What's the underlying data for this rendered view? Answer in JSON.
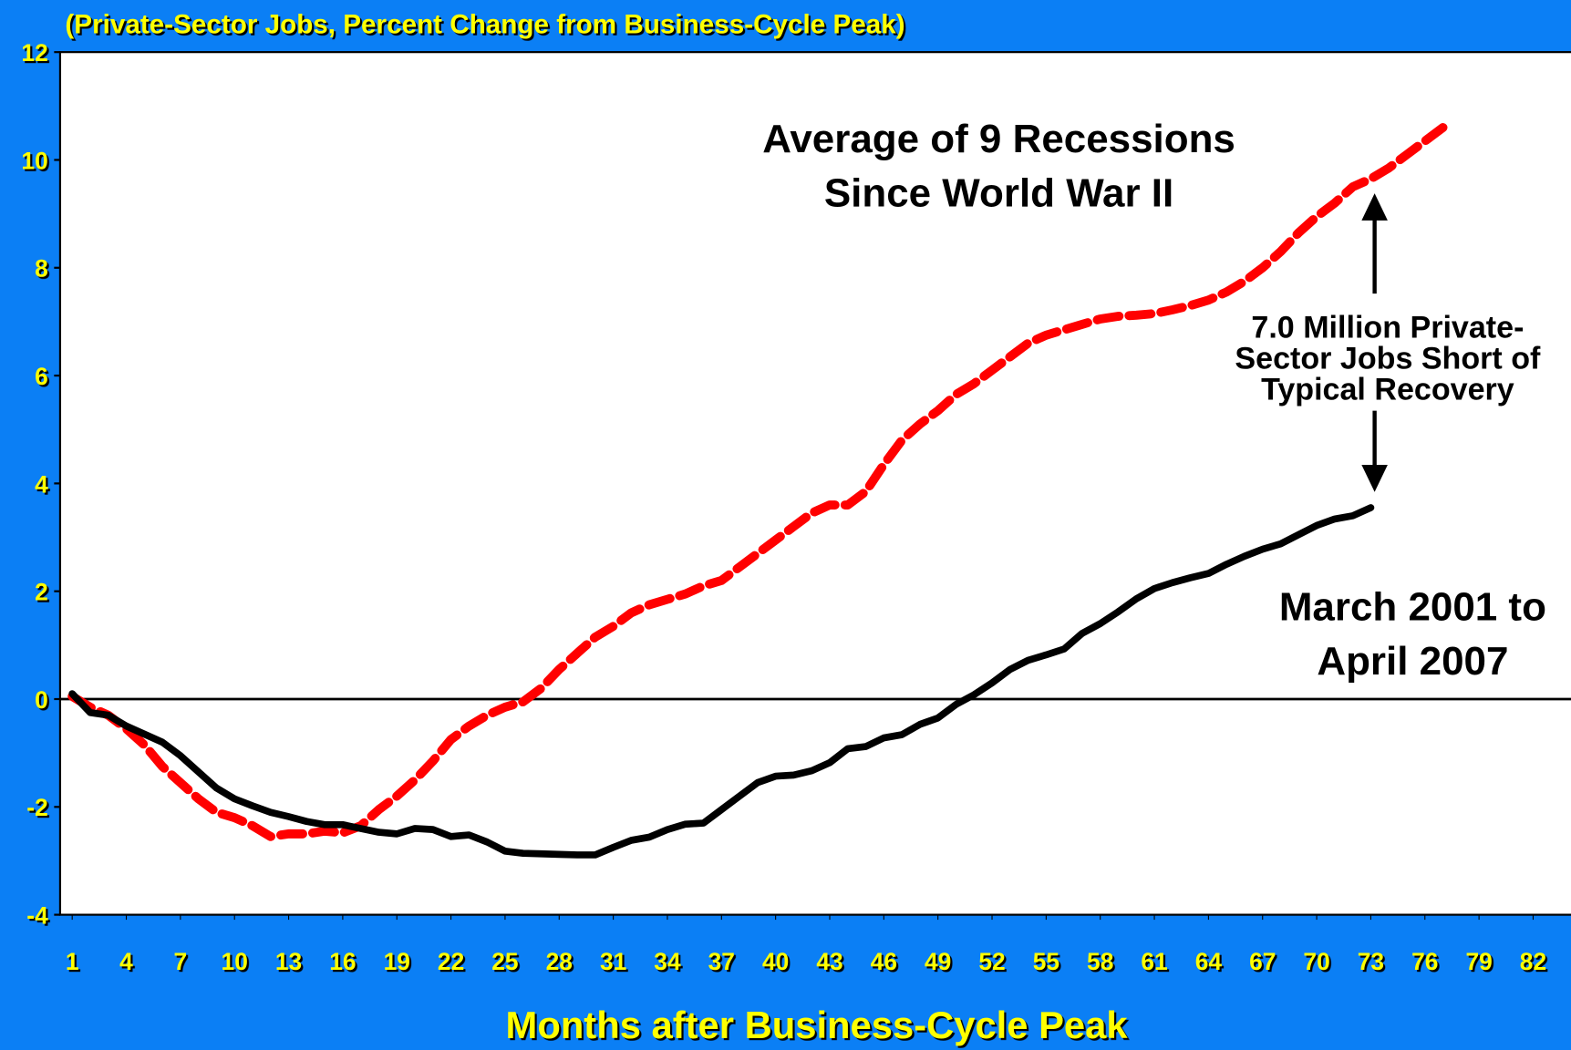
{
  "chart_data": {
    "type": "line",
    "title": "(Private-Sector Jobs, Percent Change from Business-Cycle Peak)",
    "xlabel": "Months after Business-Cycle Peak",
    "x": [
      1,
      2,
      3,
      4,
      5,
      6,
      7,
      8,
      9,
      10,
      11,
      12,
      13,
      14,
      15,
      16,
      17,
      18,
      19,
      20,
      21,
      22,
      23,
      24,
      25,
      26,
      27,
      28,
      29,
      30,
      31,
      32,
      33,
      34,
      35,
      36,
      37,
      38,
      39,
      40,
      41,
      42,
      43,
      44,
      45,
      46,
      47,
      48,
      49,
      50,
      51,
      52,
      53,
      54,
      55,
      56,
      57,
      58,
      59,
      60,
      61,
      62,
      63,
      64,
      65,
      66,
      67,
      68,
      69,
      70,
      71,
      72,
      73,
      74,
      75,
      76,
      77
    ],
    "series": [
      {
        "name": "Average of 9 Recessions Since World War II",
        "color": "#ff0000",
        "dashed": true,
        "values": [
          0.05,
          -0.15,
          -0.3,
          -0.55,
          -0.85,
          -1.25,
          -1.55,
          -1.85,
          -2.1,
          -2.2,
          -2.35,
          -2.55,
          -2.5,
          -2.5,
          -2.45,
          -2.48,
          -2.35,
          -2.05,
          -1.8,
          -1.5,
          -1.15,
          -0.75,
          -0.5,
          -0.3,
          -0.15,
          -0.05,
          0.2,
          0.55,
          0.85,
          1.15,
          1.35,
          1.6,
          1.75,
          1.85,
          1.95,
          2.1,
          2.2,
          2.45,
          2.7,
          2.95,
          3.2,
          3.45,
          3.6,
          3.6,
          3.85,
          4.35,
          4.8,
          5.1,
          5.35,
          5.65,
          5.85,
          6.1,
          6.35,
          6.6,
          6.75,
          6.85,
          6.95,
          7.05,
          7.1,
          7.12,
          7.15,
          7.22,
          7.3,
          7.4,
          7.55,
          7.75,
          8.0,
          8.3,
          8.65,
          8.95,
          9.2,
          9.5,
          9.65,
          9.85,
          10.1,
          10.35,
          10.6
        ]
      },
      {
        "name": "March 2001 to April 2007",
        "color": "#000000",
        "dashed": false,
        "values": [
          0.1,
          -0.25,
          -0.3,
          -0.5,
          -0.65,
          -0.8,
          -1.05,
          -1.35,
          -1.65,
          -1.85,
          -1.98,
          -2.1,
          -2.18,
          -2.27,
          -2.33,
          -2.33,
          -2.4,
          -2.47,
          -2.5,
          -2.4,
          -2.42,
          -2.55,
          -2.52,
          -2.65,
          -2.82,
          -2.86,
          -2.87,
          -2.88,
          -2.89,
          -2.89,
          -2.75,
          -2.62,
          -2.56,
          -2.42,
          -2.32,
          -2.3,
          -2.05,
          -1.8,
          -1.55,
          -1.43,
          -1.41,
          -1.33,
          -1.18,
          -0.92,
          -0.88,
          -0.72,
          -0.66,
          -0.47,
          -0.35,
          -0.1,
          0.08,
          0.3,
          0.55,
          0.72,
          0.82,
          0.93,
          1.22,
          1.4,
          1.62,
          1.86,
          2.05,
          2.16,
          2.25,
          2.33,
          2.5,
          2.65,
          2.78,
          2.88,
          3.05,
          3.22,
          3.34,
          3.4,
          3.55,
          null,
          null,
          null,
          null
        ]
      }
    ],
    "labels": [
      [
        "Average of 9 Recessions",
        "Since World War II"
      ],
      [
        "March 2001 to",
        "April 2007"
      ]
    ],
    "annotation": [
      "7.0 Million Private-",
      "Sector Jobs Short of",
      "Typical Recovery"
    ],
    "xlim": [
      0.33,
      84.1
    ],
    "xticks": [
      1,
      4,
      7,
      10,
      13,
      16,
      19,
      22,
      25,
      28,
      31,
      34,
      37,
      40,
      43,
      46,
      49,
      52,
      55,
      58,
      61,
      64,
      67,
      70,
      73,
      76,
      79,
      82
    ],
    "ylim": [
      -4,
      12
    ],
    "yticks": [
      -4,
      -2,
      0,
      2,
      4,
      6,
      8,
      10,
      12
    ],
    "reference_line": 0
  }
}
